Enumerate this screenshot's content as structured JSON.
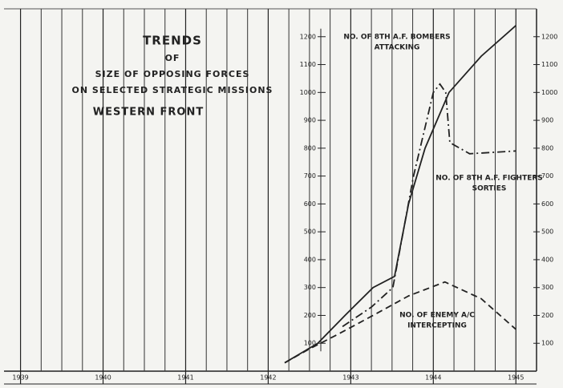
{
  "chart_data": {
    "type": "line",
    "title_lines": [
      "TRENDS",
      "OF",
      "SIZE OF OPPOSING FORCES",
      "ON SELECTED STRATEGIC MISSIONS",
      "WESTERN FRONT"
    ],
    "xlim": [
      1938.8,
      1945.25
    ],
    "xticks": [
      1939,
      1940,
      1941,
      1942,
      1943,
      1944,
      1945
    ],
    "ylim": [
      0,
      1300
    ],
    "yticks": [
      100,
      200,
      300,
      400,
      500,
      600,
      700,
      800,
      900,
      1000,
      1100,
      1200
    ],
    "grid": true,
    "series": [
      {
        "label": [
          "NO. OF 8TH A.F. BOMBERS",
          "ATTACKING"
        ],
        "color": "#222",
        "style": "solid",
        "x": [
          1942.2,
          1942.6,
          1942.93,
          1943.27,
          1943.53,
          1943.7,
          1943.9,
          1944.19,
          1944.58,
          1945.0
        ],
        "values": [
          30,
          100,
          200,
          300,
          340,
          600,
          800,
          1000,
          1130,
          1240
        ]
      },
      {
        "label": [
          "NO. OF 8TH A.F. FIGHTERS",
          "SORTIES"
        ],
        "color": "#222",
        "style": "dashdot",
        "x": [
          1942.9,
          1943.25,
          1943.51,
          1943.76,
          1944.0,
          1944.08,
          1944.15,
          1944.2,
          1944.44,
          1945.0
        ],
        "values": [
          160,
          230,
          300,
          700,
          1000,
          1030,
          1000,
          820,
          780,
          790
        ]
      },
      {
        "label": [
          "NO. OF ENEMY A/C",
          "INTERCEPTING"
        ],
        "color": "#222",
        "style": "dashed",
        "x": [
          1942.2,
          1942.5,
          1942.83,
          1943.27,
          1943.7,
          1944.14,
          1944.58,
          1945.0
        ],
        "values": [
          30,
          80,
          130,
          200,
          270,
          320,
          260,
          150
        ]
      }
    ]
  }
}
